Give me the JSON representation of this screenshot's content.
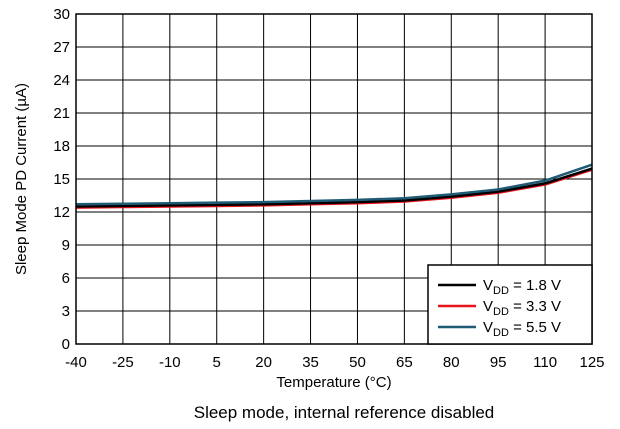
{
  "chart_data": {
    "type": "line",
    "title": "",
    "caption": "Sleep mode, internal reference disabled",
    "xlabel": "Temperature (°C)",
    "ylabel": "Sleep Mode PD Current (µA)",
    "xlim": [
      -40,
      125
    ],
    "ylim": [
      0,
      30
    ],
    "x_ticks": [
      -40,
      -25,
      -10,
      5,
      20,
      35,
      50,
      65,
      80,
      95,
      110,
      125
    ],
    "y_ticks": [
      0,
      3,
      6,
      9,
      12,
      15,
      18,
      21,
      24,
      27,
      30
    ],
    "grid": true,
    "legend_position": "bottom-right",
    "x": [
      -40,
      -25,
      -10,
      5,
      20,
      35,
      50,
      65,
      80,
      95,
      110,
      125
    ],
    "series": [
      {
        "name_main": "V",
        "name_sub": "DD",
        "name_rest": " = 1.8 V",
        "color": "#000000",
        "values": [
          12.5,
          12.55,
          12.6,
          12.65,
          12.7,
          12.8,
          12.9,
          13.05,
          13.4,
          13.85,
          14.6,
          15.95
        ]
      },
      {
        "name_main": "V",
        "name_sub": "DD",
        "name_rest": " = 3.3 V",
        "color": "#e8141c",
        "values": [
          12.4,
          12.45,
          12.5,
          12.55,
          12.6,
          12.7,
          12.8,
          12.95,
          13.3,
          13.75,
          14.5,
          15.85
        ]
      },
      {
        "name_main": "V",
        "name_sub": "DD",
        "name_rest": " = 5.5 V",
        "color": "#1f5b74",
        "values": [
          12.7,
          12.75,
          12.8,
          12.85,
          12.9,
          13.0,
          13.1,
          13.25,
          13.6,
          14.05,
          14.85,
          16.3
        ]
      }
    ]
  }
}
